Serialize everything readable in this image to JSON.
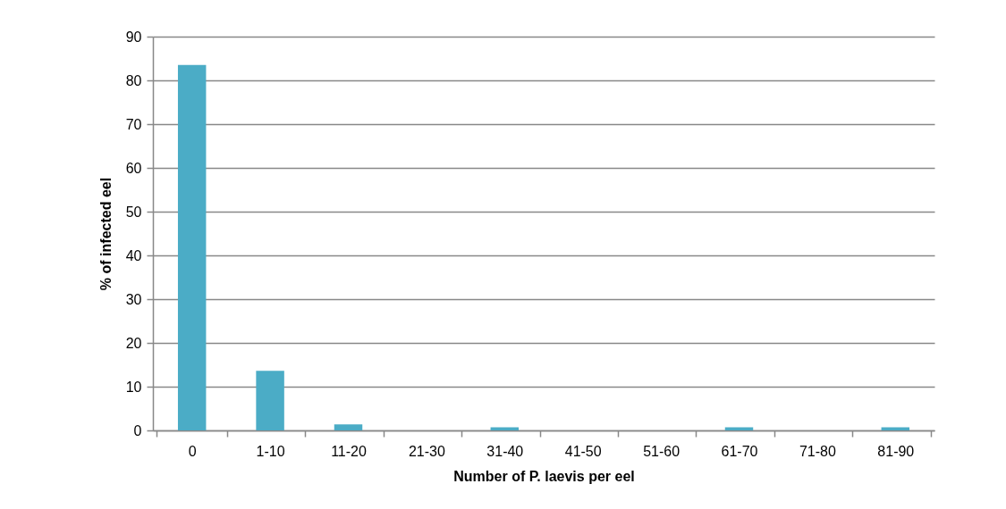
{
  "chart_data": {
    "type": "bar",
    "xlabel": "Number of P. laevis per eel",
    "ylabel": "% of infected eel",
    "categories": [
      "0",
      "1-10",
      "11-20",
      "21-30",
      "31-40",
      "41-50",
      "51-60",
      "61-70",
      "71-80",
      "81-90"
    ],
    "values": [
      83.5,
      13.6,
      1.4,
      0,
      0.7,
      0,
      0,
      0.7,
      0,
      0.7
    ],
    "color": "#4bacc6",
    "ylim": [
      0,
      90
    ],
    "yticks": [
      0,
      10,
      20,
      30,
      40,
      50,
      60,
      70,
      80,
      90
    ],
    "grid": "y"
  }
}
